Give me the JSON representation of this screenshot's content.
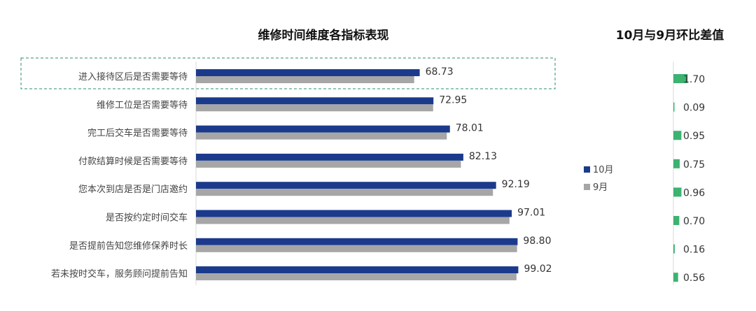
{
  "chart_data": [
    {
      "type": "bar",
      "orientation": "horizontal",
      "title": "维修时间维度各指标表现",
      "categories": [
        "进入接待区后是否需要等待",
        "维修工位是否需要等待",
        "完工后交车是否需要等待",
        "付款结算时候是否需要等待",
        "您本次到店是否是门店邀约",
        "是否按约定时间交车",
        "是否提前告知您维修保养时长",
        "若未按时交车，服务顾问提前告知"
      ],
      "series": [
        {
          "name": "10月",
          "color": "#1B3A8C",
          "values": [
            68.73,
            72.95,
            78.01,
            82.13,
            92.19,
            97.01,
            98.8,
            99.02
          ]
        },
        {
          "name": "9月",
          "color": "#A6A6A6",
          "values": [
            67.03,
            72.86,
            77.06,
            81.38,
            91.23,
            96.31,
            98.64,
            98.46
          ]
        }
      ],
      "value_labels": [
        "68.73",
        "72.95",
        "78.01",
        "82.13",
        "92.19",
        "97.01",
        "98.80",
        "99.02"
      ],
      "xlim": [
        0,
        100
      ],
      "grid": false,
      "legend": "right",
      "highlighted_category_index": 0,
      "highlight_color": "#2E8B6F"
    },
    {
      "type": "bar",
      "orientation": "horizontal",
      "title": "10月与9月环比差值",
      "categories": [
        "进入接待区后是否需要等待",
        "维修工位是否需要等待",
        "完工后交车是否需要等待",
        "付款结算时候是否需要等待",
        "您本次到店是否是门店邀约",
        "是否按约定时间交车",
        "是否提前告知您维修保养时长",
        "若未按时交车，服务顾问提前告知"
      ],
      "values": [
        1.7,
        0.09,
        0.95,
        0.75,
        0.96,
        0.7,
        0.16,
        0.56
      ],
      "value_labels": [
        "1.70",
        "0.09",
        "0.95",
        "0.75",
        "0.96",
        "0.70",
        "0.16",
        "0.56"
      ],
      "color": "#3CB371",
      "xlim": [
        0,
        2
      ]
    }
  ]
}
